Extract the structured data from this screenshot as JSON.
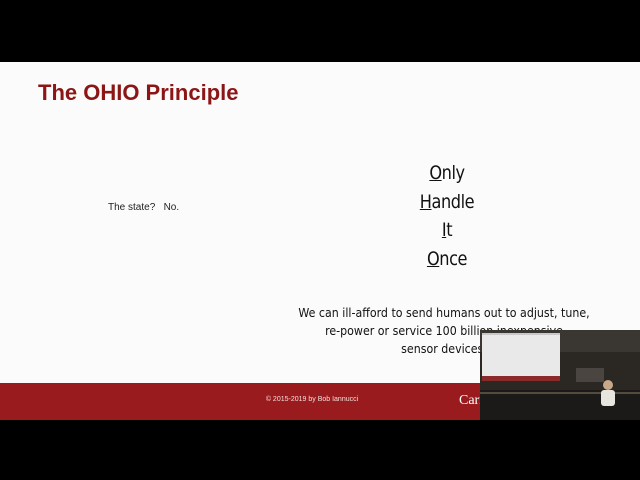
{
  "slide": {
    "title": "The OHIO Principle",
    "note": "The state?   No.",
    "acronym": [
      "Only",
      "Handle",
      "It",
      "Once"
    ],
    "paragraph": [
      "We can ill-afford to send humans out to adjust, tune,",
      "re-power or service 100 billion inexpensive",
      "sensor devices."
    ],
    "footer": {
      "copyright": "© 2015-2019 by Bob Iannucci",
      "logo": "Carn"
    }
  }
}
